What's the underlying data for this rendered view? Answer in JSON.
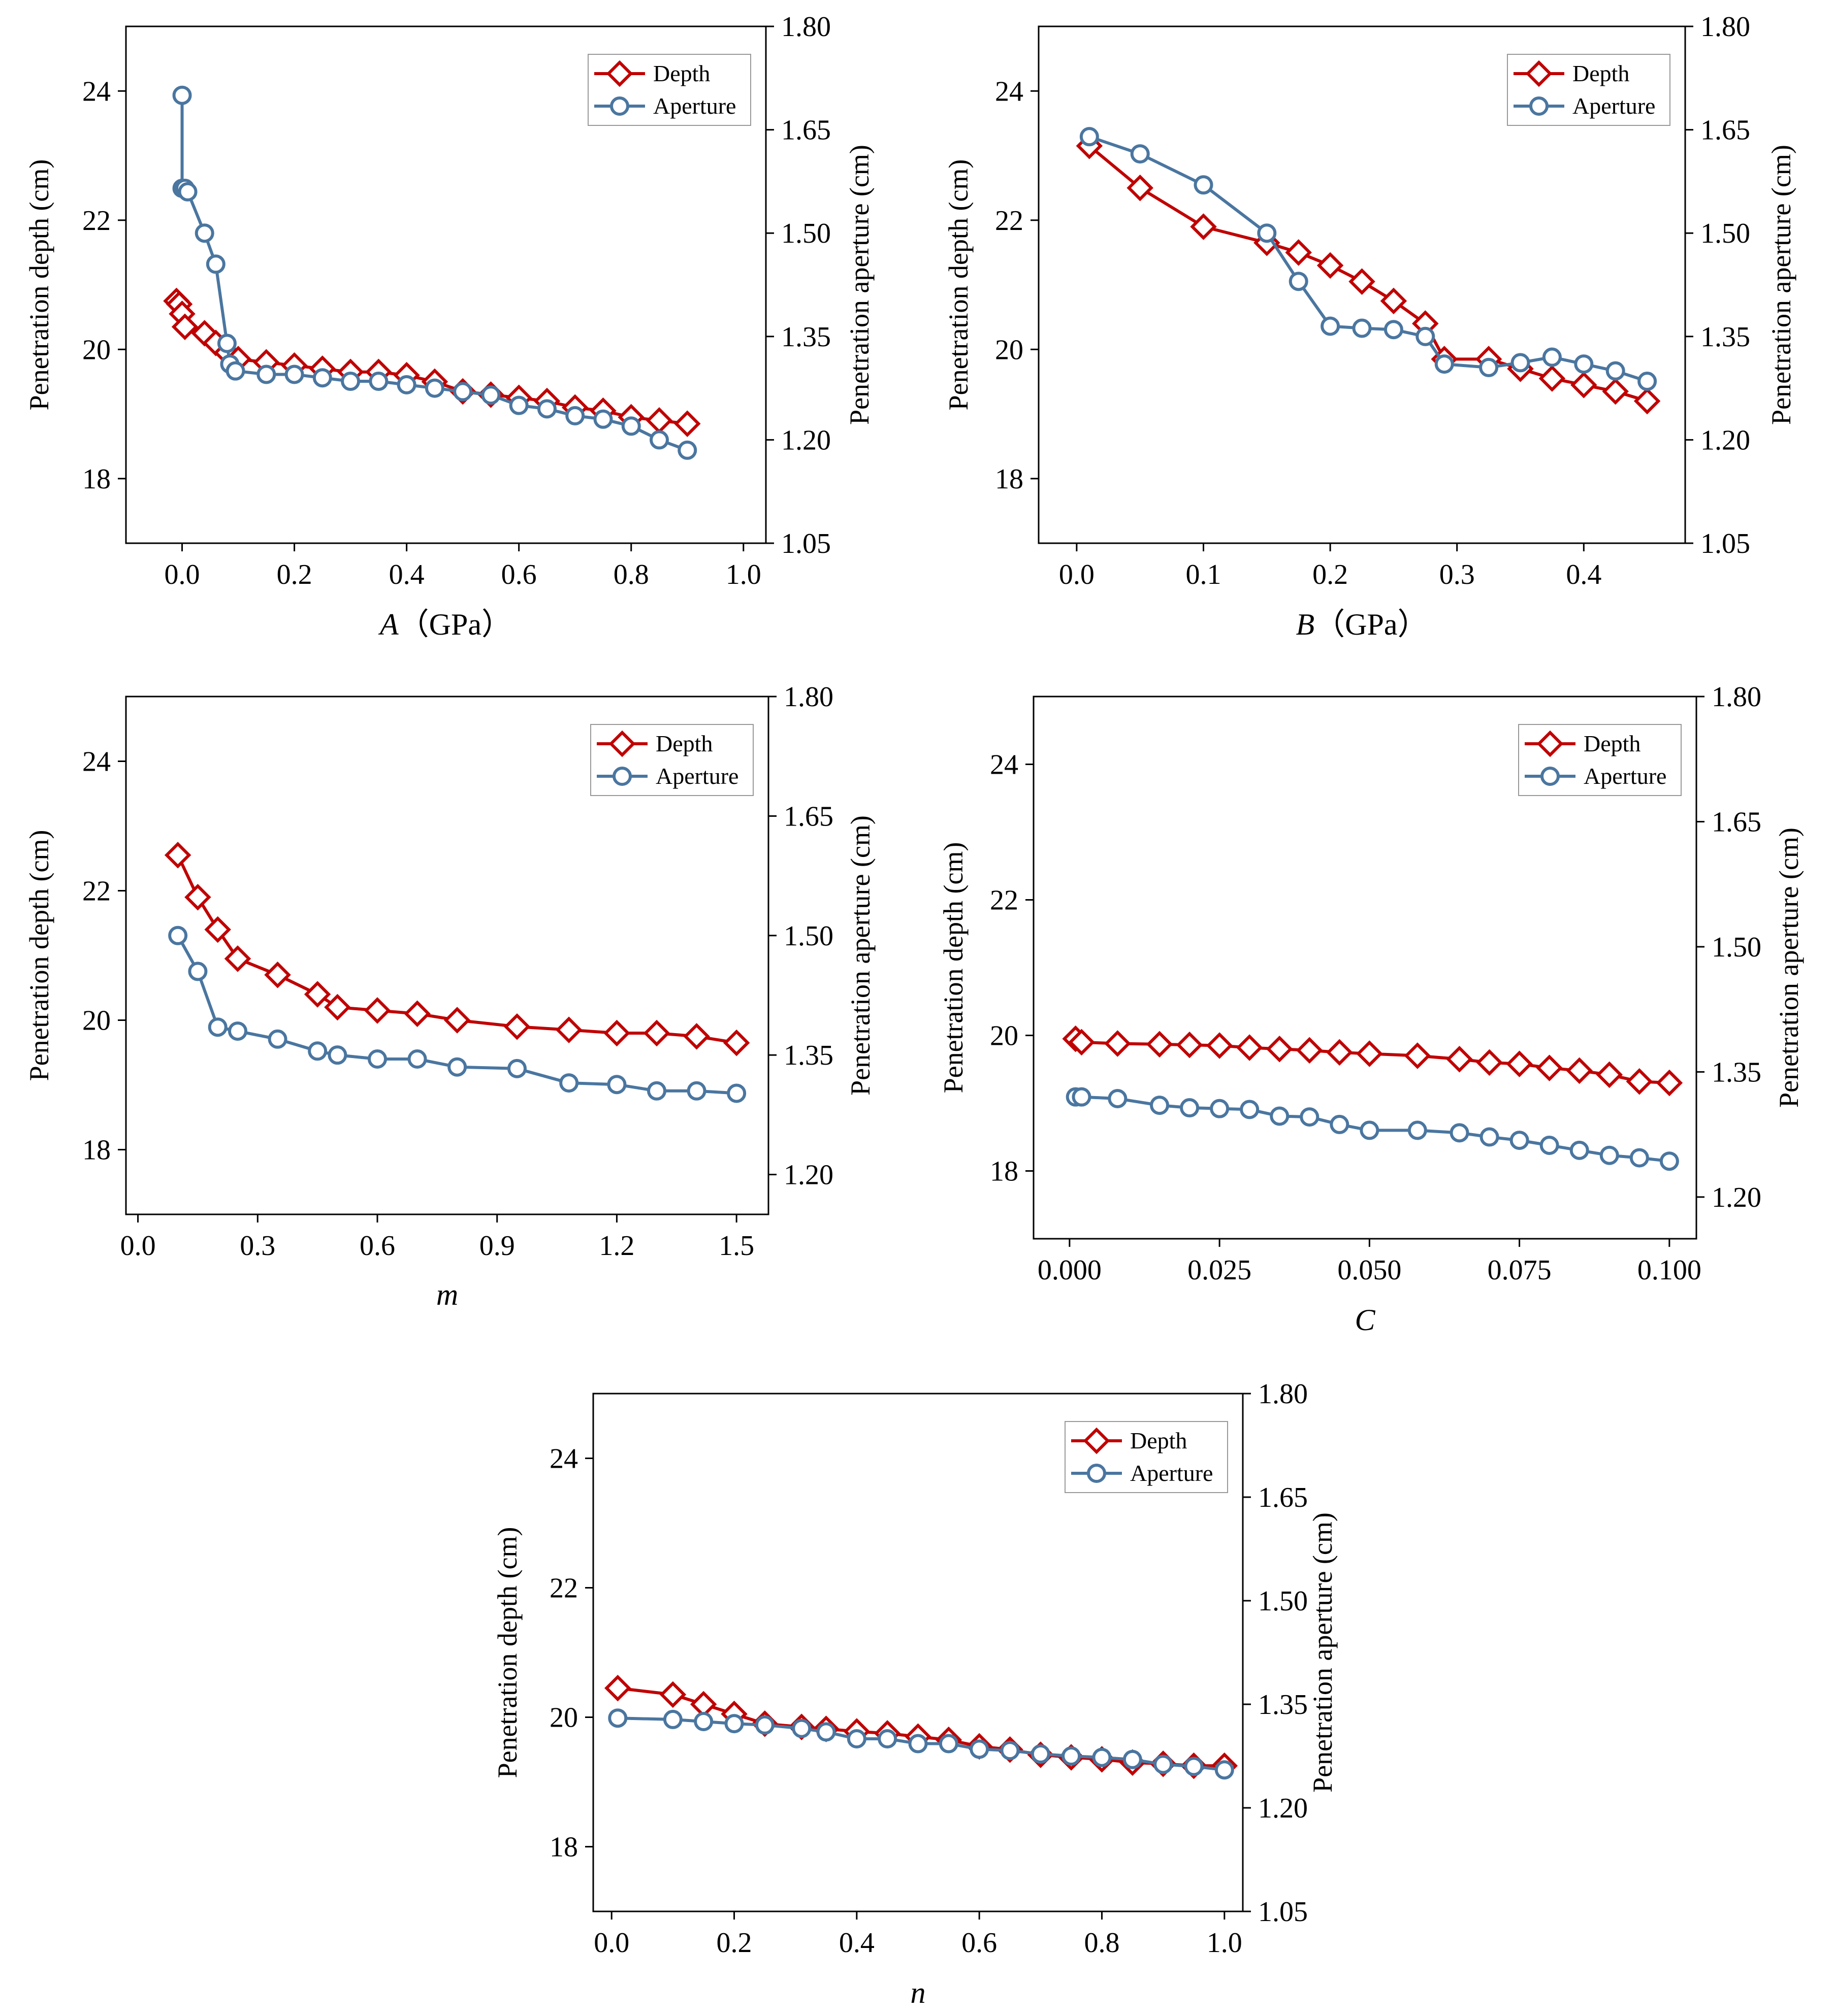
{
  "colors": {
    "depth": "#c00000",
    "aperture": "#4a76a0",
    "axis": "#000000"
  },
  "chart_data": [
    {
      "type": "line",
      "id": "A",
      "xlabel": "A",
      "xunit": "（GPa）",
      "ylabel": "Penetration depth (cm)",
      "y2label": "Penetration aperture (cm)",
      "xlim": [
        -0.1,
        1.04
      ],
      "xticks": [
        0.0,
        0.2,
        0.4,
        0.6,
        0.8,
        1.0
      ],
      "xtick_labels": [
        "0.0",
        "0.2",
        "0.4",
        "0.6",
        "0.8",
        "1.0"
      ],
      "ylim": [
        17,
        25
      ],
      "yticks": [
        18,
        20,
        22,
        24
      ],
      "ytick_labels": [
        "18",
        "20",
        "22",
        "24"
      ],
      "y2lim": [
        1.05,
        1.8
      ],
      "y2ticks": [
        1.05,
        1.2,
        1.35,
        1.5,
        1.65,
        1.8
      ],
      "y2tick_labels": [
        "1.05",
        "1.20",
        "1.35",
        "1.50",
        "1.65",
        "1.80"
      ],
      "legend": [
        "Depth",
        "Aperture"
      ],
      "legend_position": "top-right",
      "series": [
        {
          "name": "Depth",
          "axis": "left",
          "x": [
            -0.01,
            -0.005,
            0.0,
            0.005,
            0.04,
            0.06,
            0.08,
            0.1,
            0.15,
            0.2,
            0.25,
            0.3,
            0.35,
            0.4,
            0.45,
            0.5,
            0.55,
            0.6,
            0.65,
            0.7,
            0.75,
            0.8,
            0.85,
            0.9
          ],
          "y": [
            20.75,
            20.7,
            20.55,
            20.35,
            20.25,
            20.1,
            19.95,
            19.85,
            19.8,
            19.75,
            19.7,
            19.65,
            19.65,
            19.6,
            19.5,
            19.35,
            19.3,
            19.25,
            19.2,
            19.1,
            19.05,
            18.95,
            18.9,
            18.85
          ]
        },
        {
          "name": "Aperture",
          "axis": "right",
          "x": [
            0.0,
            0.0,
            0.005,
            0.01,
            0.04,
            0.06,
            0.08,
            0.085,
            0.095,
            0.15,
            0.2,
            0.25,
            0.3,
            0.35,
            0.4,
            0.45,
            0.5,
            0.55,
            0.6,
            0.65,
            0.7,
            0.75,
            0.8,
            0.85,
            0.9
          ],
          "y": [
            1.7,
            1.565,
            1.565,
            1.56,
            1.5,
            1.455,
            1.34,
            1.31,
            1.3,
            1.295,
            1.295,
            1.29,
            1.285,
            1.285,
            1.28,
            1.275,
            1.27,
            1.265,
            1.25,
            1.245,
            1.235,
            1.23,
            1.22,
            1.2,
            1.185
          ]
        }
      ]
    },
    {
      "type": "line",
      "id": "B",
      "xlabel": "B",
      "xunit": "（GPa）",
      "ylabel": "Penetration depth (cm)",
      "y2label": "Penetration aperture (cm)",
      "xlim": [
        -0.03,
        0.48
      ],
      "xticks": [
        0.0,
        0.1,
        0.2,
        0.3,
        0.4
      ],
      "xtick_labels": [
        "0.0",
        "0.1",
        "0.2",
        "0.3",
        "0.4"
      ],
      "ylim": [
        17,
        25
      ],
      "yticks": [
        18,
        20,
        22,
        24
      ],
      "ytick_labels": [
        "18",
        "20",
        "22",
        "24"
      ],
      "y2lim": [
        1.05,
        1.8
      ],
      "y2ticks": [
        1.05,
        1.2,
        1.35,
        1.5,
        1.65,
        1.8
      ],
      "y2tick_labels": [
        "1.05",
        "1.20",
        "1.35",
        "1.50",
        "1.65",
        "1.80"
      ],
      "legend": [
        "Depth",
        "Aperture"
      ],
      "legend_position": "top-right",
      "series": [
        {
          "name": "Depth",
          "axis": "left",
          "x": [
            0.01,
            0.05,
            0.1,
            0.15,
            0.175,
            0.2,
            0.225,
            0.25,
            0.275,
            0.29,
            0.325,
            0.35,
            0.375,
            0.4,
            0.425,
            0.45
          ],
          "y": [
            23.15,
            22.5,
            21.9,
            21.65,
            21.5,
            21.3,
            21.05,
            20.75,
            20.4,
            19.85,
            19.85,
            19.7,
            19.55,
            19.45,
            19.35,
            19.2
          ]
        },
        {
          "name": "Aperture",
          "axis": "right",
          "x": [
            0.01,
            0.05,
            0.1,
            0.15,
            0.175,
            0.2,
            0.225,
            0.25,
            0.275,
            0.29,
            0.325,
            0.35,
            0.375,
            0.4,
            0.425,
            0.45
          ],
          "y": [
            1.64,
            1.615,
            1.57,
            1.5,
            1.43,
            1.365,
            1.362,
            1.36,
            1.35,
            1.31,
            1.305,
            1.312,
            1.32,
            1.31,
            1.3,
            1.285
          ]
        }
      ]
    },
    {
      "type": "line",
      "id": "m",
      "xlabel": "m",
      "xunit": "",
      "ylabel": "Penetration depth (cm)",
      "y2label": "Penetration aperture (cm)",
      "xlim": [
        -0.03,
        1.58
      ],
      "xticks": [
        0.0,
        0.3,
        0.6,
        0.9,
        1.2,
        1.5
      ],
      "xtick_labels": [
        "0.0",
        "0.3",
        "0.6",
        "0.9",
        "1.2",
        "1.5"
      ],
      "ylim": [
        17,
        25
      ],
      "yticks": [
        18,
        20,
        22,
        24
      ],
      "ytick_labels": [
        "18",
        "20",
        "22",
        "24"
      ],
      "y2lim": [
        1.15,
        1.8
      ],
      "y2ticks": [
        1.2,
        1.35,
        1.5,
        1.65,
        1.8
      ],
      "y2tick_labels": [
        "1.20",
        "1.35",
        "1.50",
        "1.65",
        "1.80"
      ],
      "legend": [
        "Depth",
        "Aperture"
      ],
      "legend_position": "top-right",
      "series": [
        {
          "name": "Depth",
          "axis": "left",
          "x": [
            0.1,
            0.15,
            0.2,
            0.25,
            0.35,
            0.45,
            0.5,
            0.6,
            0.7,
            0.8,
            0.95,
            1.08,
            1.2,
            1.3,
            1.4,
            1.5
          ],
          "y": [
            22.55,
            21.9,
            21.4,
            20.95,
            20.7,
            20.4,
            20.2,
            20.15,
            20.1,
            20.0,
            19.9,
            19.85,
            19.8,
            19.8,
            19.75,
            19.65
          ]
        },
        {
          "name": "Aperture",
          "axis": "right",
          "x": [
            0.1,
            0.15,
            0.2,
            0.25,
            0.35,
            0.45,
            0.5,
            0.6,
            0.7,
            0.8,
            0.95,
            1.08,
            1.2,
            1.3,
            1.4,
            1.5
          ],
          "y": [
            1.5,
            1.455,
            1.385,
            1.38,
            1.37,
            1.355,
            1.35,
            1.345,
            1.345,
            1.335,
            1.333,
            1.315,
            1.313,
            1.305,
            1.305,
            1.302
          ]
        }
      ]
    },
    {
      "type": "line",
      "id": "C",
      "xlabel": "C",
      "xunit": "",
      "ylabel": "Penetration depth (cm)",
      "y2label": "Penetration aperture (cm)",
      "xlim": [
        -0.006,
        0.1045
      ],
      "xticks": [
        0.0,
        0.025,
        0.05,
        0.075,
        0.1
      ],
      "xtick_labels": [
        "0.000",
        "0.025",
        "0.050",
        "0.075",
        "0.100"
      ],
      "ylim": [
        17,
        25
      ],
      "yticks": [
        18,
        20,
        22,
        24
      ],
      "ytick_labels": [
        "18",
        "20",
        "22",
        "24"
      ],
      "y2lim": [
        1.15,
        1.8
      ],
      "y2ticks": [
        1.2,
        1.35,
        1.5,
        1.65,
        1.8
      ],
      "y2tick_labels": [
        "1.20",
        "1.35",
        "1.50",
        "1.65",
        "1.80"
      ],
      "legend": [
        "Depth",
        "Aperture"
      ],
      "legend_position": "top-right",
      "series": [
        {
          "name": "Depth",
          "axis": "left",
          "x": [
            0.001,
            0.002,
            0.008,
            0.015,
            0.02,
            0.025,
            0.03,
            0.035,
            0.04,
            0.045,
            0.05,
            0.058,
            0.065,
            0.07,
            0.075,
            0.08,
            0.085,
            0.09,
            0.095,
            0.1
          ],
          "y": [
            19.95,
            19.9,
            19.88,
            19.87,
            19.86,
            19.85,
            19.82,
            19.8,
            19.78,
            19.75,
            19.73,
            19.7,
            19.65,
            19.6,
            19.58,
            19.52,
            19.48,
            19.42,
            19.32,
            19.3
          ]
        },
        {
          "name": "Aperture",
          "axis": "right",
          "x": [
            0.001,
            0.002,
            0.008,
            0.015,
            0.02,
            0.025,
            0.03,
            0.035,
            0.04,
            0.045,
            0.05,
            0.058,
            0.065,
            0.07,
            0.075,
            0.08,
            0.085,
            0.09,
            0.095,
            0.1
          ],
          "y": [
            1.32,
            1.32,
            1.318,
            1.31,
            1.307,
            1.306,
            1.305,
            1.297,
            1.296,
            1.287,
            1.28,
            1.28,
            1.277,
            1.272,
            1.268,
            1.262,
            1.256,
            1.25,
            1.247,
            1.243
          ]
        }
      ]
    },
    {
      "type": "line",
      "id": "n",
      "xlabel": "n",
      "xunit": "",
      "ylabel": "Penetration depth (cm)",
      "y2label": "Penetration aperture (cm)",
      "xlim": [
        -0.03,
        1.03
      ],
      "xticks": [
        0.0,
        0.2,
        0.4,
        0.6,
        0.8,
        1.0
      ],
      "xtick_labels": [
        "0.0",
        "0.2",
        "0.4",
        "0.6",
        "0.8",
        "1.0"
      ],
      "ylim": [
        17,
        25
      ],
      "yticks": [
        18,
        20,
        22,
        24
      ],
      "ytick_labels": [
        "18",
        "20",
        "22",
        "24"
      ],
      "y2lim": [
        1.05,
        1.8
      ],
      "y2ticks": [
        1.05,
        1.2,
        1.35,
        1.5,
        1.65,
        1.8
      ],
      "y2tick_labels": [
        "1.05",
        "1.20",
        "1.35",
        "1.50",
        "1.65",
        "1.80"
      ],
      "legend": [
        "Depth",
        "Aperture"
      ],
      "legend_position": "top-right",
      "series": [
        {
          "name": "Depth",
          "axis": "left",
          "x": [
            0.01,
            0.1,
            0.15,
            0.2,
            0.25,
            0.31,
            0.35,
            0.4,
            0.45,
            0.5,
            0.55,
            0.6,
            0.65,
            0.7,
            0.75,
            0.8,
            0.85,
            0.9,
            0.95,
            1.0
          ],
          "y": [
            20.45,
            20.35,
            20.2,
            20.05,
            19.9,
            19.85,
            19.82,
            19.78,
            19.75,
            19.7,
            19.65,
            19.55,
            19.5,
            19.42,
            19.38,
            19.35,
            19.3,
            19.28,
            19.25,
            19.25
          ]
        },
        {
          "name": "Aperture",
          "axis": "right",
          "x": [
            0.01,
            0.1,
            0.15,
            0.2,
            0.25,
            0.31,
            0.35,
            0.4,
            0.45,
            0.5,
            0.55,
            0.6,
            0.65,
            0.7,
            0.75,
            0.8,
            0.85,
            0.9,
            0.95,
            1.0
          ],
          "y": [
            1.33,
            1.328,
            1.325,
            1.322,
            1.32,
            1.315,
            1.31,
            1.3,
            1.3,
            1.293,
            1.293,
            1.285,
            1.283,
            1.278,
            1.275,
            1.273,
            1.27,
            1.263,
            1.26,
            1.255
          ]
        }
      ]
    }
  ]
}
